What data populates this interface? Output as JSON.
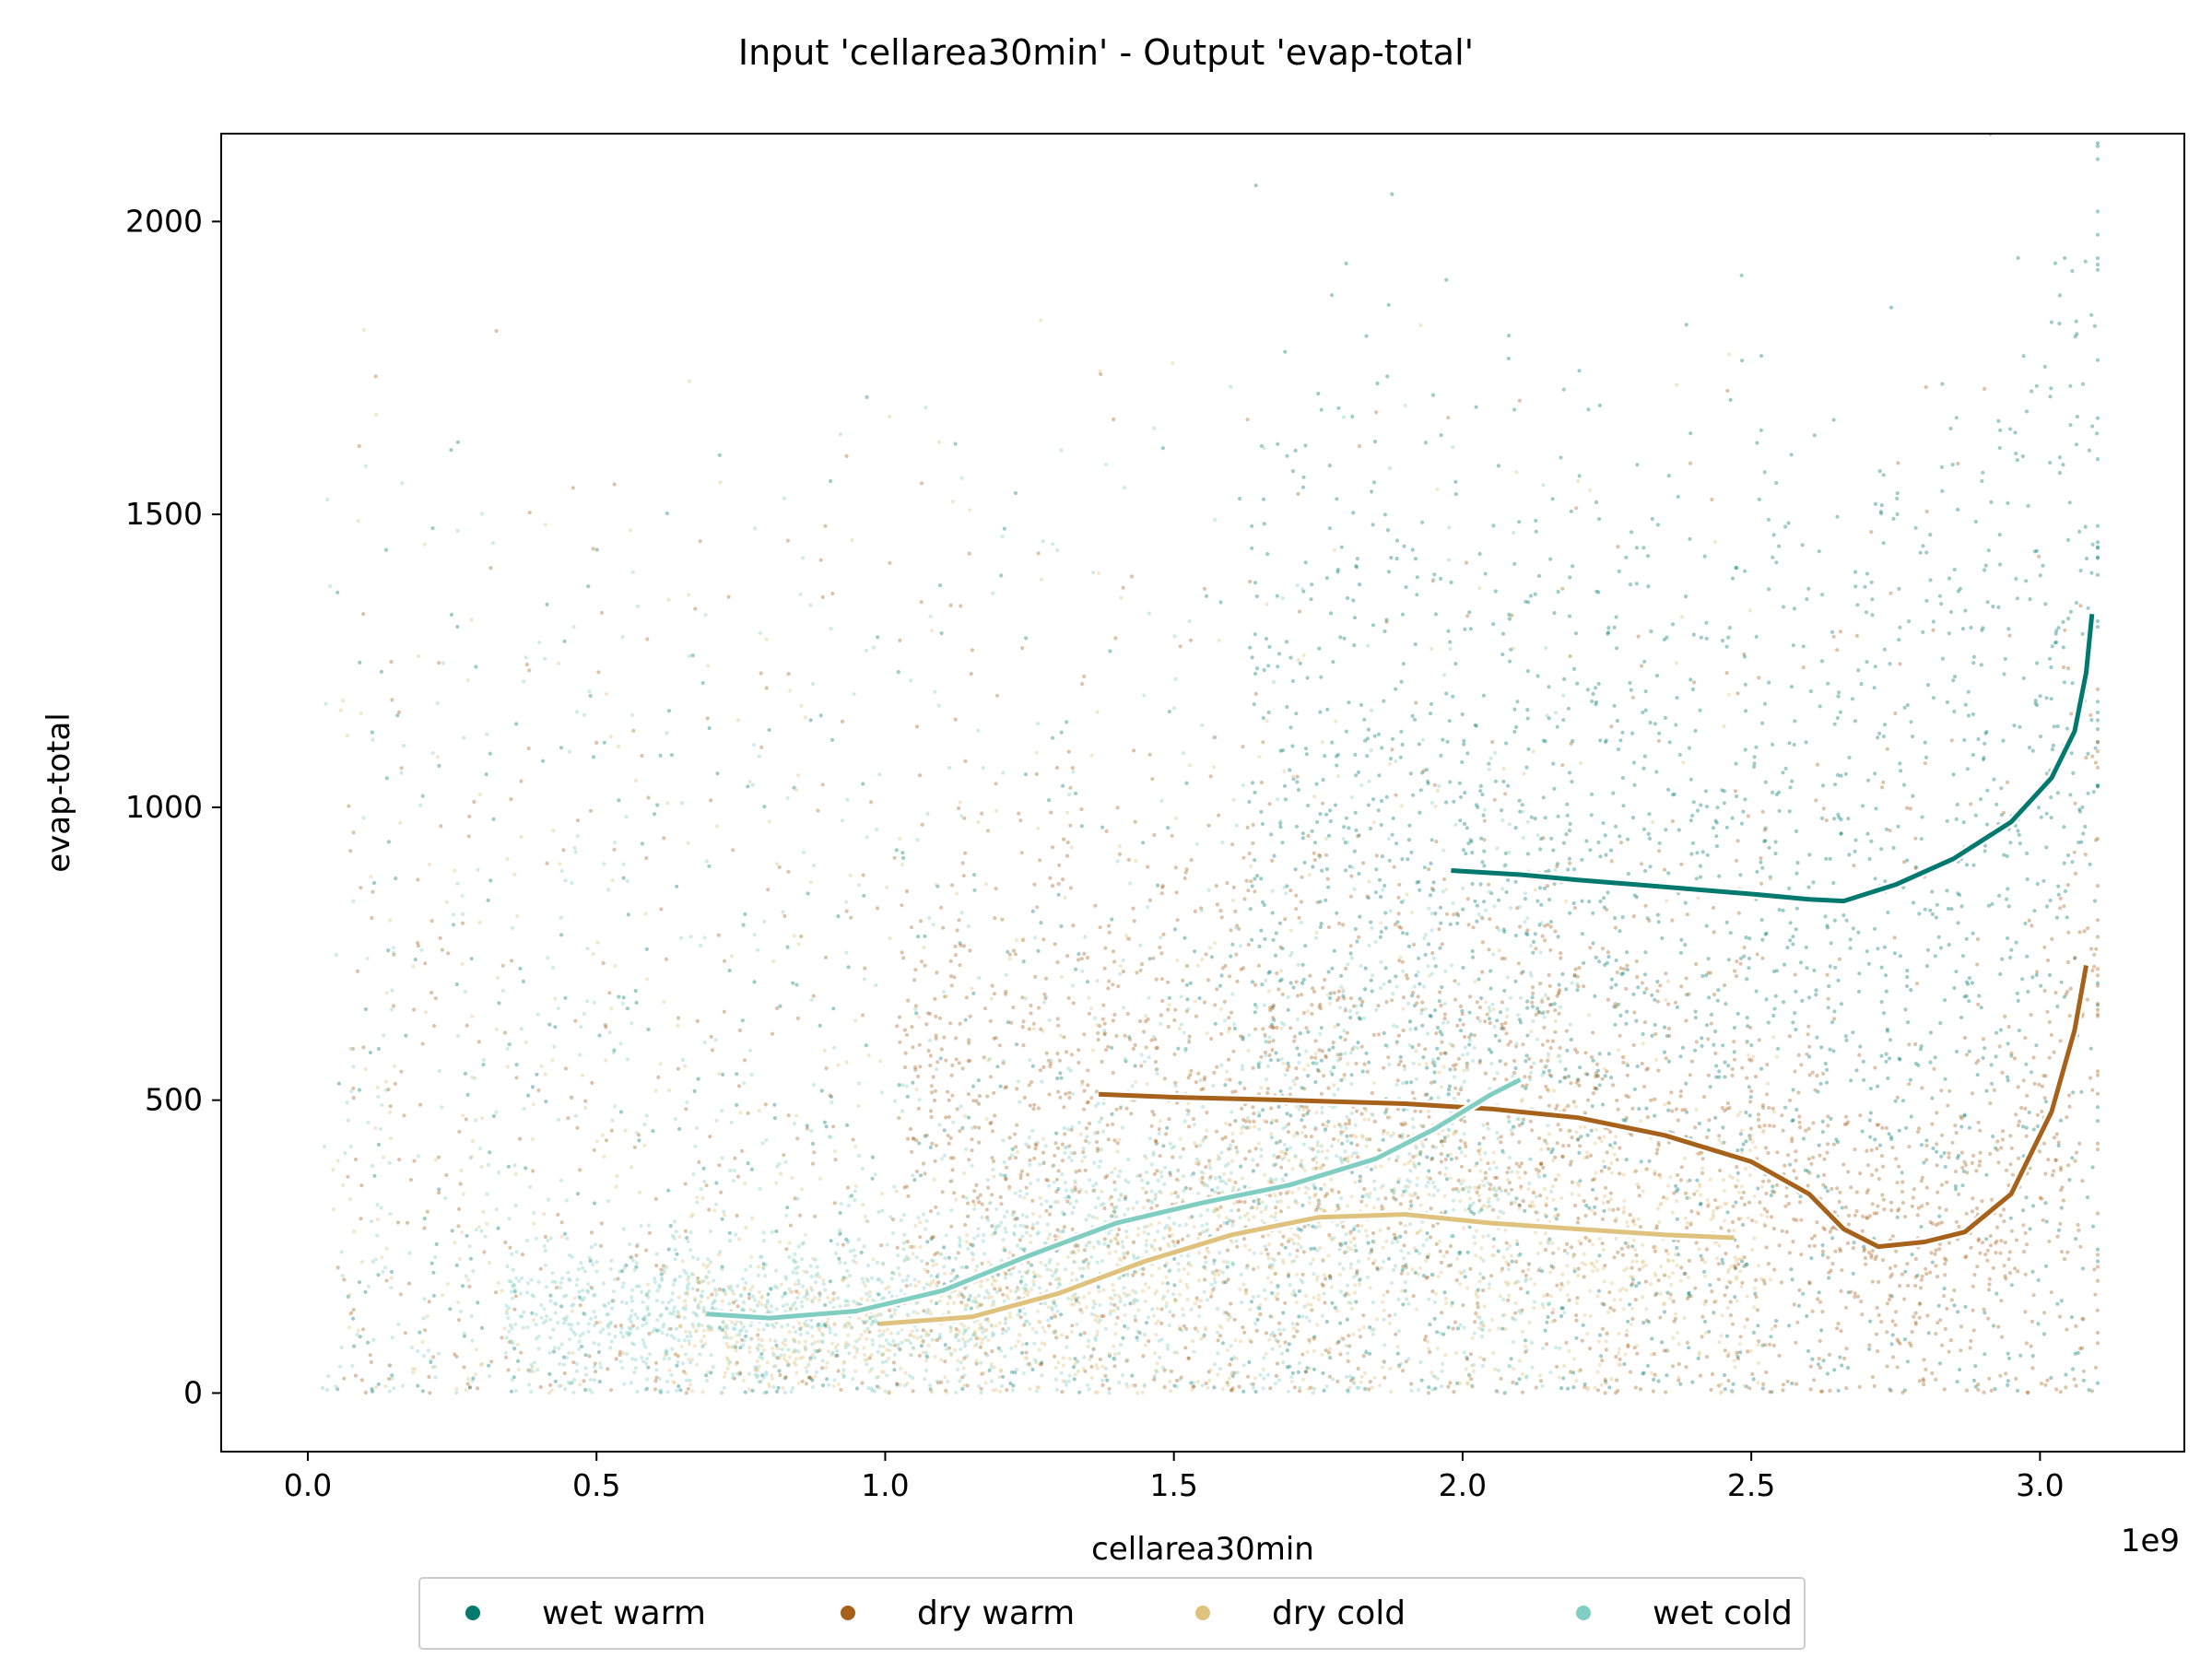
{
  "chart_data": {
    "type": "scatter",
    "title": "Input 'cellarea30min' - Output 'evap-total'",
    "xlabel": "cellarea30min",
    "ylabel": "evap-total",
    "x_offset_label": "1e9",
    "xlim": [
      -0.15,
      3.25
    ],
    "ylim": [
      -100,
      2150
    ],
    "x_ticks": [
      0.0,
      0.5,
      1.0,
      1.5,
      2.0,
      2.5,
      3.0
    ],
    "x_tick_labels": [
      "0.0",
      "0.5",
      "1.0",
      "1.5",
      "2.0",
      "2.5",
      "3.0"
    ],
    "y_ticks": [
      0,
      500,
      1000,
      1500,
      2000
    ],
    "y_tick_labels": [
      "0",
      "500",
      "1000",
      "1500",
      "2000"
    ],
    "grid": false,
    "legend_position": "bottom-center",
    "series": [
      {
        "name": "wet warm",
        "color": "#01796f",
        "trend": [
          [
            1.98,
            892
          ],
          [
            2.1,
            885
          ],
          [
            2.2,
            876
          ],
          [
            2.3,
            868
          ],
          [
            2.4,
            860
          ],
          [
            2.5,
            852
          ],
          [
            2.6,
            843
          ],
          [
            2.66,
            840
          ],
          [
            2.75,
            868
          ],
          [
            2.85,
            912
          ],
          [
            2.95,
            975
          ],
          [
            3.02,
            1050
          ],
          [
            3.06,
            1130
          ],
          [
            3.08,
            1230
          ],
          [
            3.09,
            1330
          ]
        ]
      },
      {
        "name": "dry warm",
        "color": "#a6611a",
        "trend": [
          [
            1.37,
            510
          ],
          [
            1.5,
            505
          ],
          [
            1.7,
            500
          ],
          [
            1.9,
            494
          ],
          [
            2.05,
            485
          ],
          [
            2.2,
            470
          ],
          [
            2.35,
            440
          ],
          [
            2.5,
            395
          ],
          [
            2.6,
            340
          ],
          [
            2.66,
            280
          ],
          [
            2.72,
            250
          ],
          [
            2.8,
            258
          ],
          [
            2.87,
            275
          ],
          [
            2.95,
            340
          ],
          [
            3.02,
            480
          ],
          [
            3.06,
            620
          ],
          [
            3.08,
            730
          ]
        ]
      },
      {
        "name": "dry cold",
        "color": "#dfc27d",
        "trend": [
          [
            0.99,
            118
          ],
          [
            1.15,
            130
          ],
          [
            1.3,
            170
          ],
          [
            1.45,
            225
          ],
          [
            1.6,
            270
          ],
          [
            1.75,
            300
          ],
          [
            1.9,
            305
          ],
          [
            2.05,
            290
          ],
          [
            2.2,
            280
          ],
          [
            2.35,
            270
          ],
          [
            2.47,
            265
          ]
        ]
      },
      {
        "name": "wet cold",
        "color": "#80cdc1",
        "trend": [
          [
            0.69,
            135
          ],
          [
            0.8,
            128
          ],
          [
            0.95,
            140
          ],
          [
            1.1,
            175
          ],
          [
            1.25,
            235
          ],
          [
            1.4,
            290
          ],
          [
            1.55,
            325
          ],
          [
            1.7,
            355
          ],
          [
            1.85,
            400
          ],
          [
            1.95,
            450
          ],
          [
            2.05,
            510
          ],
          [
            2.1,
            535
          ]
        ]
      }
    ]
  }
}
